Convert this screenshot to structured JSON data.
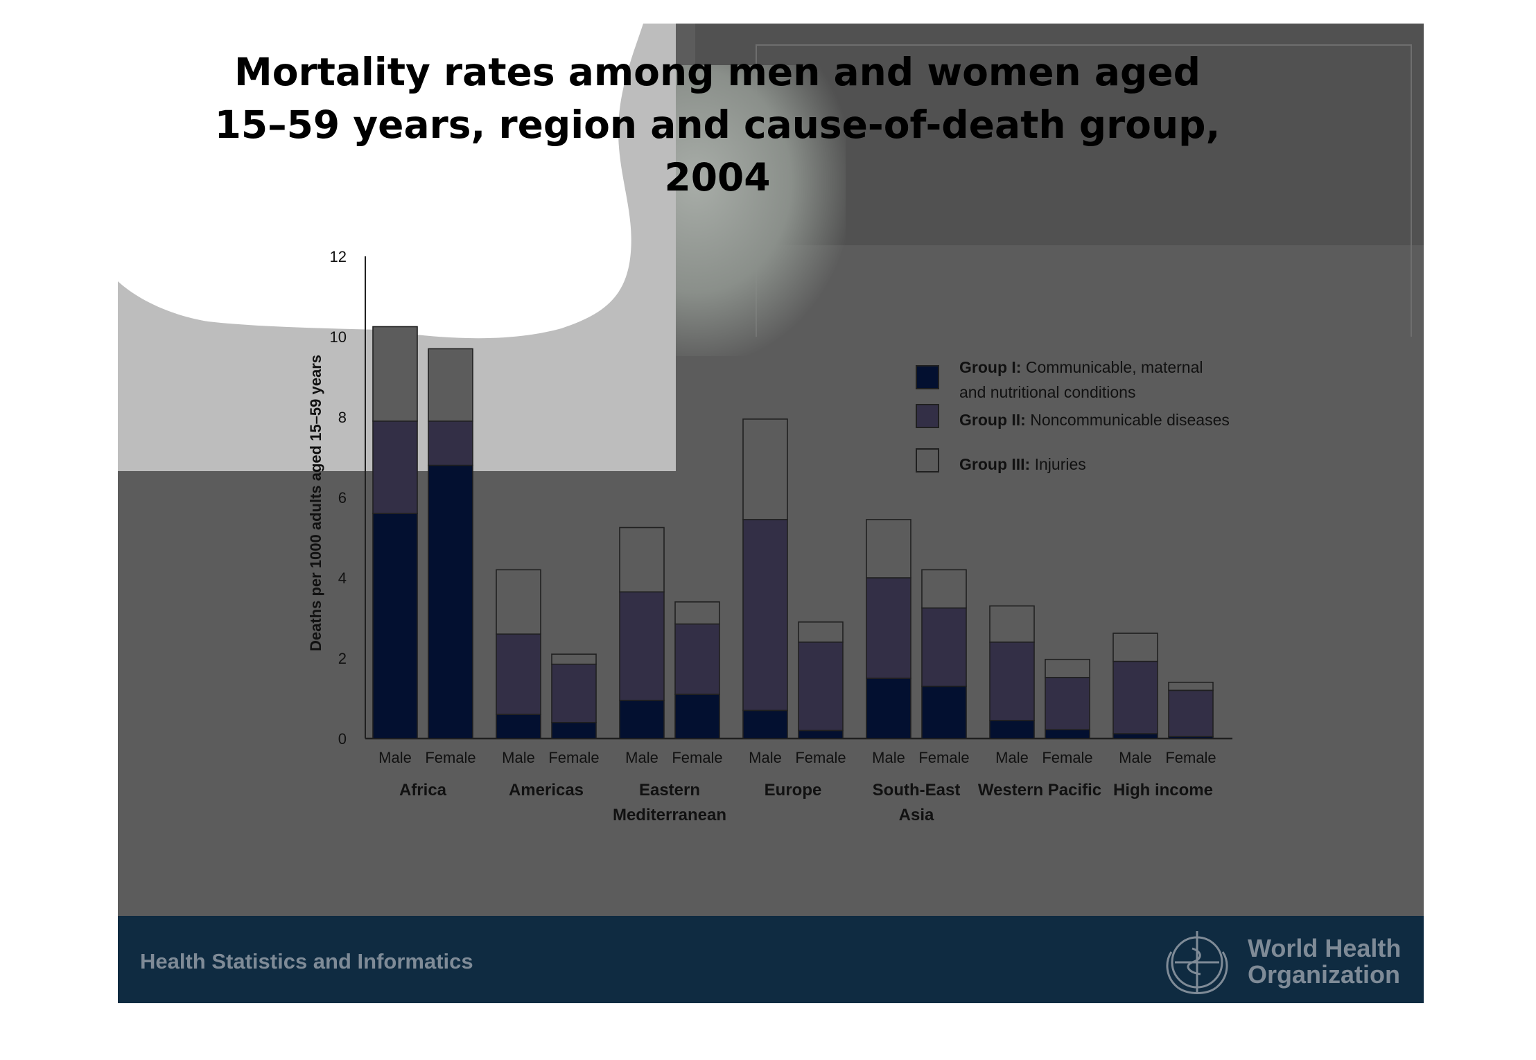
{
  "title_lines": [
    "Mortality rates among men and women aged",
    "15–59 years, region and cause-of-death group,",
    "2004"
  ],
  "footer": {
    "left_text": "Health Statistics and Informatics",
    "org_line1": "World Health",
    "org_line2": "Organization"
  },
  "colors": {
    "group1": "#031030",
    "group2": "#332f46",
    "group3": "#5c5c5c",
    "axis": "#202020",
    "slide_bg": "#5c5c5c",
    "footer_bg": "#0f2b41"
  },
  "icons": {
    "emblem": "who-emblem-icon"
  },
  "chart_data": {
    "type": "bar",
    "stacked": true,
    "title": "Mortality rates among men and women aged 15–59 years, region and cause-of-death group, 2004",
    "ylabel": "Deaths per 1000 adults aged 15–59 years",
    "xlabel": "",
    "ylim": [
      0,
      12
    ],
    "yticks": [
      "0",
      "2",
      "4",
      "6",
      "8",
      "10",
      "12"
    ],
    "grid": false,
    "legend_position": "top-right",
    "regions": [
      {
        "label_lines": [
          "Africa"
        ]
      },
      {
        "label_lines": [
          "Americas"
        ]
      },
      {
        "label_lines": [
          "Eastern",
          "Mediterranean"
        ]
      },
      {
        "label_lines": [
          "Europe"
        ]
      },
      {
        "label_lines": [
          "South-East",
          "Asia"
        ]
      },
      {
        "label_lines": [
          "Western Pacific"
        ]
      },
      {
        "label_lines": [
          "High income"
        ]
      }
    ],
    "sexes": [
      "Male",
      "Female"
    ],
    "categories": [
      "Africa Male",
      "Africa Female",
      "Americas Male",
      "Americas Female",
      "Eastern Mediterranean Male",
      "Eastern Mediterranean Female",
      "Europe Male",
      "Europe Female",
      "South-East Asia Male",
      "South-East Asia Female",
      "Western Pacific Male",
      "Western Pacific Female",
      "High income Male",
      "High income Female"
    ],
    "series": [
      {
        "name_bold": "Group I:",
        "name_rest_lines": [
          "Communicable, maternal",
          "and nutritional conditions"
        ],
        "name": "Group I: Communicable, maternal and nutritional conditions",
        "values": [
          5.6,
          6.8,
          0.6,
          0.4,
          0.95,
          1.1,
          0.7,
          0.2,
          1.5,
          1.3,
          0.45,
          0.22,
          0.12,
          0.05
        ]
      },
      {
        "name_bold": "Group II:",
        "name_rest_lines": [
          "Noncommunicable diseases"
        ],
        "name": "Group II: Noncommunicable diseases",
        "values": [
          2.3,
          1.1,
          2.0,
          1.45,
          2.7,
          1.75,
          4.75,
          2.2,
          2.5,
          1.95,
          1.95,
          1.3,
          1.8,
          1.15
        ]
      },
      {
        "name_bold": "Group III:",
        "name_rest_lines": [
          "Injuries"
        ],
        "name": "Group III: Injuries",
        "values": [
          2.35,
          1.8,
          1.6,
          0.25,
          1.6,
          0.55,
          2.5,
          0.5,
          1.45,
          0.95,
          0.9,
          0.45,
          0.7,
          0.2
        ]
      }
    ]
  }
}
